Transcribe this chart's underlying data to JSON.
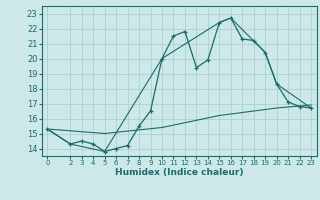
{
  "xlabel": "Humidex (Indice chaleur)",
  "bg_color": "#cce8e8",
  "grid_color": "#aacccc",
  "line_color": "#1a6b6b",
  "ylim": [
    13.5,
    23.5
  ],
  "xlim": [
    -0.5,
    23.5
  ],
  "yticks": [
    14,
    15,
    16,
    17,
    18,
    19,
    20,
    21,
    22,
    23
  ],
  "xticks": [
    0,
    2,
    3,
    4,
    5,
    6,
    7,
    8,
    9,
    10,
    11,
    12,
    13,
    14,
    15,
    16,
    17,
    18,
    19,
    20,
    21,
    22,
    23
  ],
  "curve1_x": [
    0,
    2,
    3,
    4,
    5,
    6,
    7,
    8,
    9,
    10,
    11,
    12,
    13,
    14,
    15,
    16,
    17,
    18,
    19,
    20,
    21,
    22,
    23
  ],
  "curve1_y": [
    15.3,
    14.3,
    14.5,
    14.3,
    13.8,
    14.0,
    14.2,
    15.5,
    16.5,
    20.0,
    21.5,
    21.8,
    19.4,
    19.9,
    22.4,
    22.7,
    21.3,
    21.2,
    20.4,
    18.3,
    17.1,
    16.8,
    16.7
  ],
  "curve2_x": [
    0,
    2,
    5,
    10,
    15,
    16,
    19,
    20,
    23
  ],
  "curve2_y": [
    15.3,
    14.3,
    13.8,
    20.0,
    22.4,
    22.7,
    20.4,
    18.3,
    16.7
  ],
  "curve3_x": [
    0,
    5,
    10,
    15,
    20,
    23
  ],
  "curve3_y": [
    15.3,
    15.0,
    15.4,
    16.2,
    16.7,
    16.9
  ]
}
